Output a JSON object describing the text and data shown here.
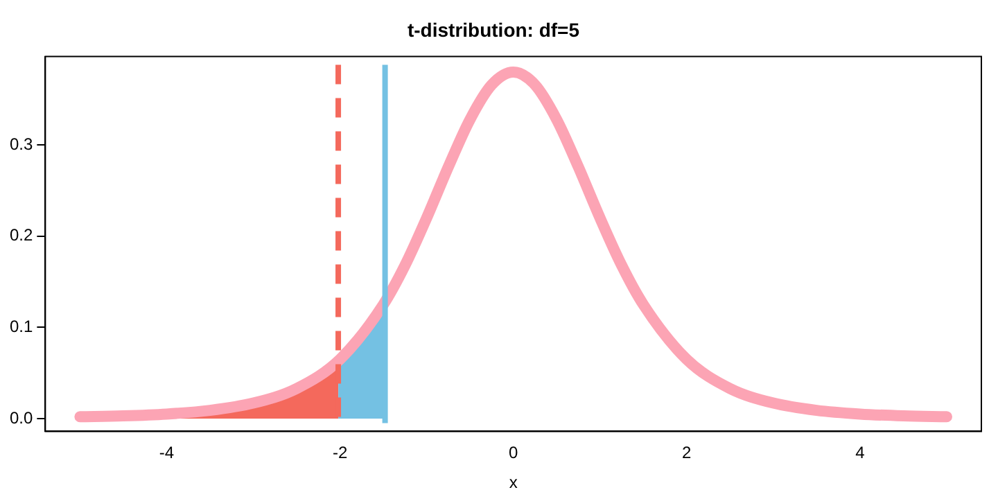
{
  "chart_data": {
    "type": "line",
    "title": "t-distribution: df=5",
    "xlabel": "x",
    "xlim": [
      -5.4,
      5.4
    ],
    "xticks": [
      -4,
      -2,
      0,
      2,
      4
    ],
    "ylim": [
      -0.014,
      0.397
    ],
    "yticks": [
      {
        "value": 0,
        "label": "0.0"
      },
      {
        "value": 0.1,
        "label": "0.1"
      },
      {
        "value": 0.2,
        "label": "0.2"
      },
      {
        "value": 0.3,
        "label": "0.3"
      }
    ],
    "grid": false,
    "legend": false,
    "marker": "none",
    "series": [
      {
        "type": "area",
        "color": "#f4695c",
        "x": [
          -5,
          -4.5,
          -4,
          -3.5,
          -3,
          -2.5,
          -2.02
        ],
        "values": [
          0.002,
          0.003,
          0.005,
          0.009,
          0.017,
          0.033,
          0.063
        ]
      },
      {
        "type": "area",
        "color": "#74c1e3",
        "x": [
          -2.02,
          -1.75,
          -1.48
        ],
        "values": [
          0.063,
          0.091,
          0.128
        ]
      },
      {
        "color": "#fca4b4",
        "line_style": "solid",
        "x": [
          -5,
          -4.5,
          -4,
          -3.5,
          -3,
          -2.5,
          -2,
          -1.5,
          -1.25,
          -1,
          -0.75,
          -0.5,
          -0.25,
          0,
          0.25,
          0.5,
          0.75,
          1,
          1.25,
          1.5,
          2,
          2.5,
          3,
          3.5,
          4,
          4.5,
          5
        ],
        "values": [
          0.002,
          0.003,
          0.005,
          0.009,
          0.017,
          0.033,
          0.065,
          0.125,
          0.168,
          0.22,
          0.276,
          0.328,
          0.366,
          0.38,
          0.366,
          0.328,
          0.276,
          0.22,
          0.168,
          0.125,
          0.065,
          0.033,
          0.017,
          0.009,
          0.005,
          0.003,
          0.002
        ]
      }
    ],
    "ref_lines": [
      {
        "axis": "x",
        "value": -2.02,
        "color": "#f4695c",
        "line_style": "dashed"
      },
      {
        "axis": "x",
        "value": -1.48,
        "color": "#74c1e3",
        "line_style": "solid"
      }
    ]
  }
}
